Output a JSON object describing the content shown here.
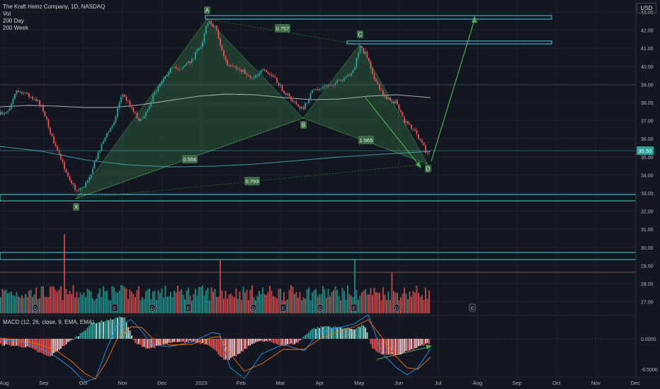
{
  "header": {
    "symbol_title": "The Kraft Heinz Company, 1D, NASDAQ",
    "indicators": [
      "Vol",
      "200 Day",
      "200 Week"
    ]
  },
  "currency_button": "USD",
  "price_axis": {
    "ticks": [
      "43.00",
      "42.00",
      "41.00",
      "40.00",
      "39.00",
      "38.00",
      "37.00",
      "36.00",
      "35.00",
      "34.00",
      "33.00",
      "32.00",
      "31.00",
      "30.00",
      "29.00",
      "28.00",
      "27.00"
    ],
    "last_price": "35.50"
  },
  "macd": {
    "label": "MACD (12, 26, close, 9, EMA, EMA)",
    "ticks": [
      "0.0000",
      "-0.5000"
    ]
  },
  "time_axis": [
    "Aug",
    "Sep",
    "Oct",
    "Nov",
    "Dec",
    "2023",
    "Feb",
    "Mar",
    "Apr",
    "May",
    "Jun",
    "Jul",
    "Aug",
    "Sep",
    "Oct",
    "Nov",
    "Dec"
  ],
  "pattern": {
    "points": [
      "X",
      "A",
      "B",
      "C",
      "D"
    ],
    "ratios": [
      "0.757",
      "0.556",
      "1.565",
      "0.793"
    ]
  },
  "event_markers": [
    "D",
    "E",
    "D",
    "E",
    "D",
    "E",
    "D",
    "E",
    "D",
    "E"
  ],
  "colors": {
    "background": "#131722",
    "up": "#26a69a",
    "down": "#ef5350",
    "pattern_fill": "#2e5a3a",
    "pattern_label": "#3d6b45",
    "zone": "#4dd0e1",
    "ma200": "#d1d4dc",
    "projection": "#4caf50"
  },
  "chart_data": {
    "type": "candlestick",
    "title": "The Kraft Heinz Company, 1D, NASDAQ",
    "ylim": [
      26.3,
      43.3
    ],
    "pattern_prices": {
      "X": 32.9,
      "A": 42.9,
      "B": 37.4,
      "C": 41.4,
      "D": 34.8
    },
    "zones": [
      [
        42.65,
        42.85
      ],
      [
        41.45,
        41.55
      ],
      [
        32.75,
        33.05
      ],
      [
        29.6,
        29.85
      ]
    ],
    "projection_target": 42.8
  }
}
